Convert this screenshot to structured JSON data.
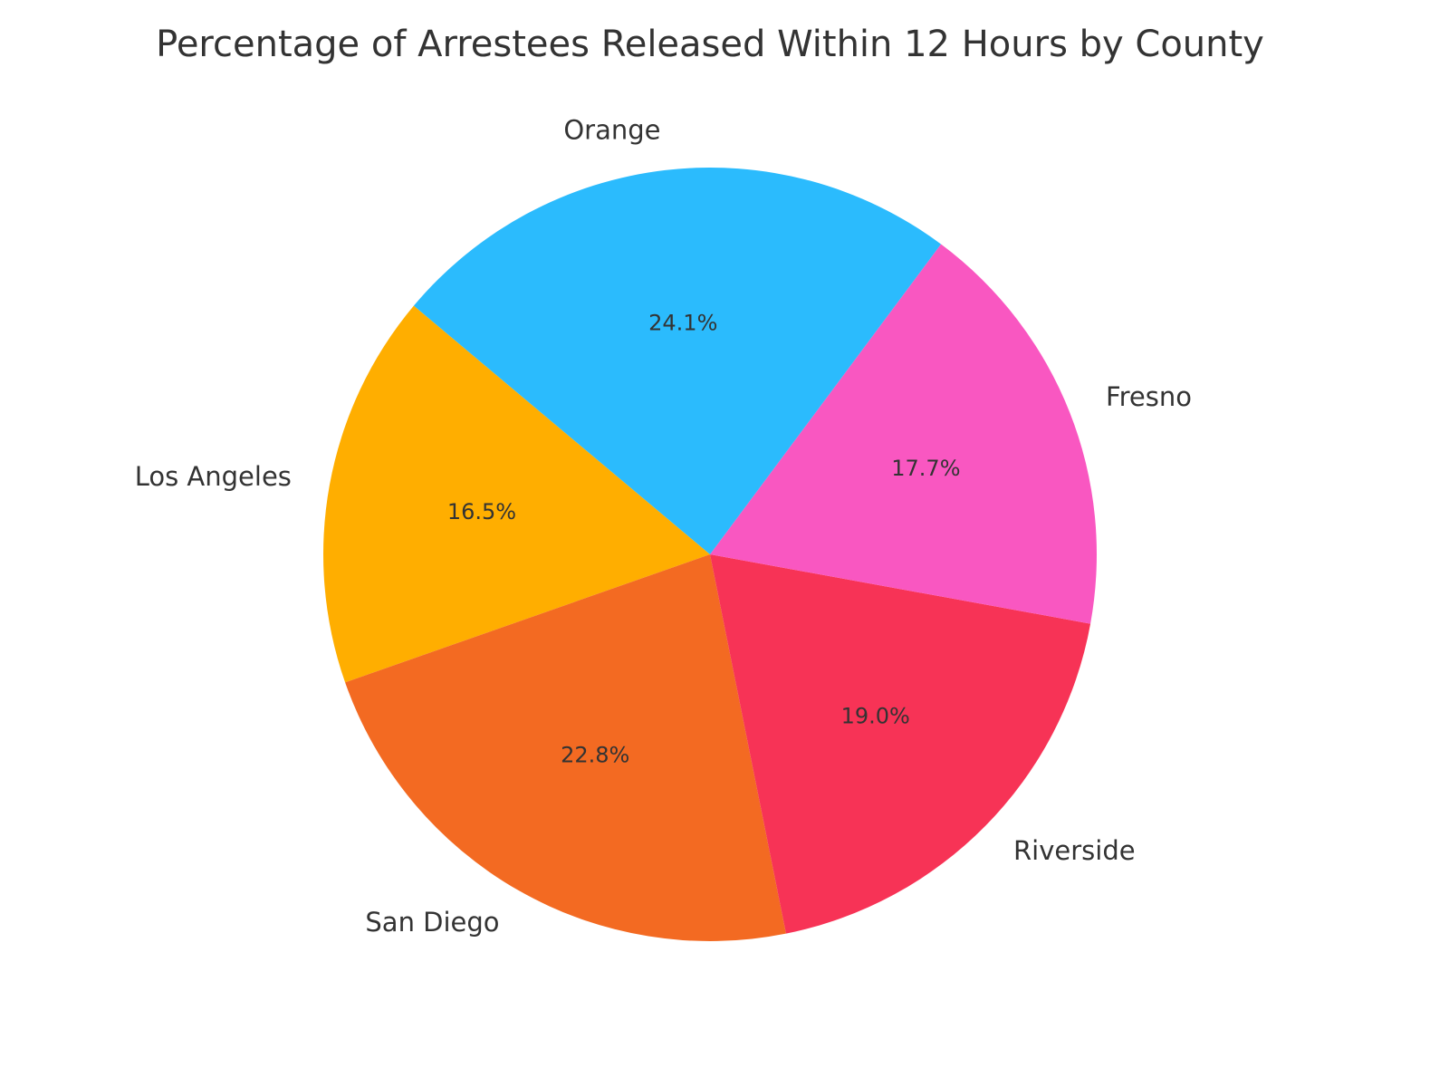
{
  "chart_data": {
    "type": "pie",
    "title": "Percentage of Arrestees Released Within 12 Hours by County",
    "categories": [
      "Los Angeles",
      "San Diego",
      "Riverside",
      "Fresno",
      "Orange"
    ],
    "values": [
      16.5,
      22.8,
      19.0,
      17.7,
      24.1
    ],
    "value_labels": [
      "16.5%",
      "22.8%",
      "19.0%",
      "17.7%",
      "24.1%"
    ],
    "colors": [
      "#FFAE00",
      "#F36A22",
      "#F73356",
      "#F957C1",
      "#2BBBFD"
    ],
    "start_angle_deg": 140,
    "direction": "counterclockwise"
  }
}
